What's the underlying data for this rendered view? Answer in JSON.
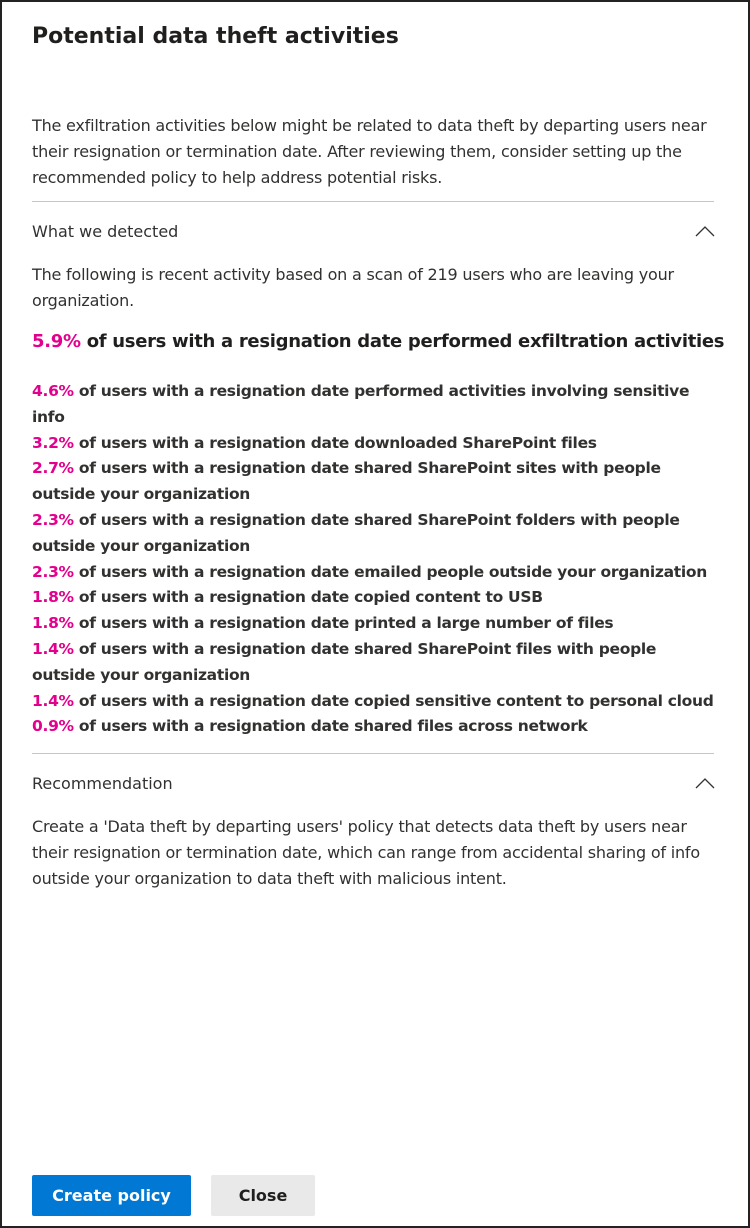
{
  "panel": {
    "title": "Potential data theft activities",
    "description": "The exfiltration activities below might be related to data theft by departing users near their resignation or termination date. After reviewing them, consider setting up the recommended policy to help address potential risks."
  },
  "detected": {
    "heading": "What we detected",
    "intro": "The following is recent activity based on a scan of 219 users who are leaving your organization.",
    "headline": {
      "pct": "5.9%",
      "text": " of users with a resignation date performed exfiltration activities"
    },
    "items": [
      {
        "pct": "4.6%",
        "text": " of users with a resignation date performed activities involving sensitive info"
      },
      {
        "pct": "3.2%",
        "text": " of users with a resignation date downloaded SharePoint files"
      },
      {
        "pct": "2.7%",
        "text": " of users with a resignation date shared SharePoint sites with people outside your organization"
      },
      {
        "pct": "2.3%",
        "text": " of users with a resignation date shared SharePoint folders with people outside your organization"
      },
      {
        "pct": "2.3%",
        "text": " of users with a resignation date emailed people outside your organization"
      },
      {
        "pct": "1.8%",
        "text": " of users with a resignation date copied content to USB"
      },
      {
        "pct": "1.8%",
        "text": " of users with a resignation date printed a large number of files"
      },
      {
        "pct": "1.4%",
        "text": " of users with a resignation date shared SharePoint files with people outside your organization"
      },
      {
        "pct": "1.4%",
        "text": " of users with a resignation date copied sensitive content to personal cloud"
      },
      {
        "pct": "0.9%",
        "text": " of users with a resignation date shared files across network"
      }
    ]
  },
  "recommendation": {
    "heading": "Recommendation",
    "text": "Create a 'Data theft by departing users' policy that detects data theft by users near their resignation or termination date, which can range from accidental sharing of info outside your organization to data theft with malicious intent."
  },
  "actions": {
    "primary": "Create policy",
    "secondary": "Close"
  },
  "colors": {
    "accent": "#e3008c",
    "primary_button": "#0078d4"
  }
}
